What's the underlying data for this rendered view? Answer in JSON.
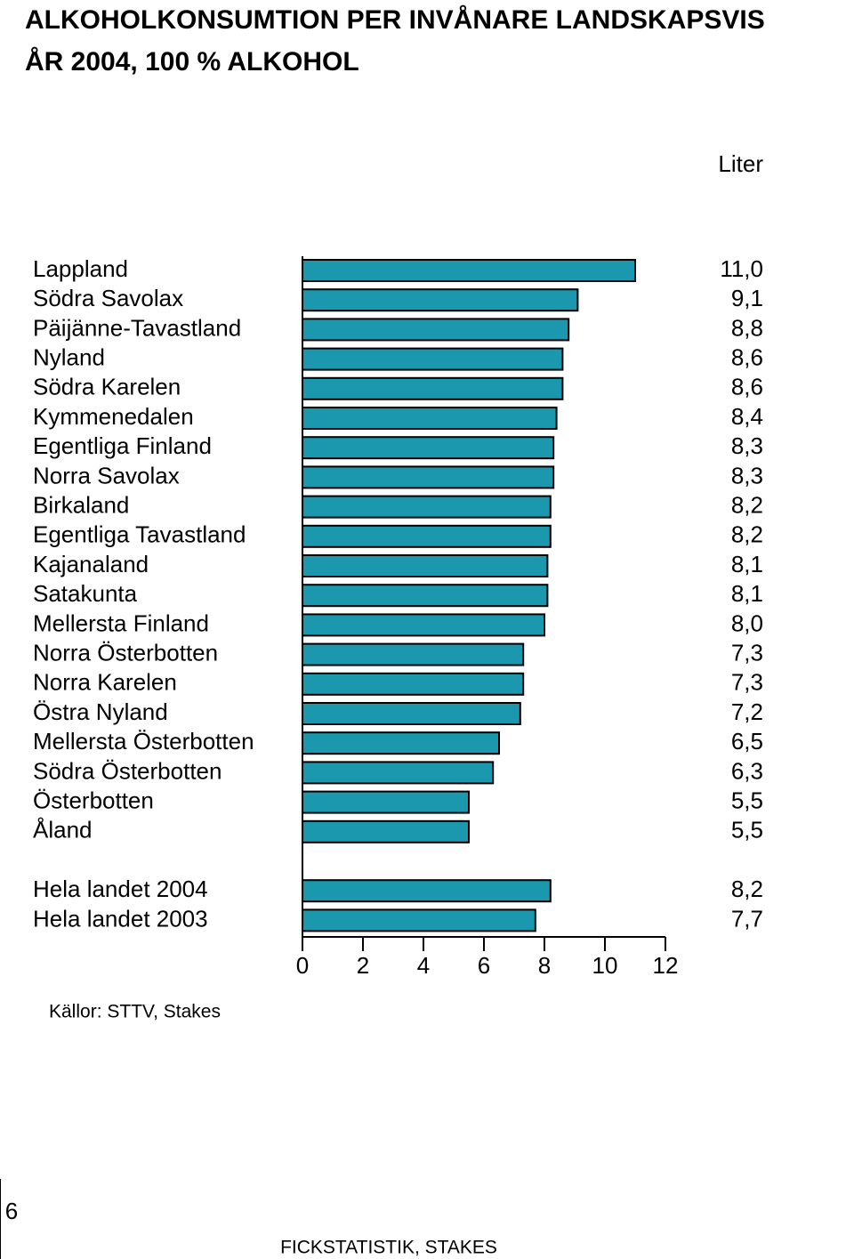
{
  "chart_data": {
    "type": "bar",
    "orientation": "horizontal",
    "title": [
      "ALKOHOLKONSUMTION PER INVÅNARE LANDSKAPSVIS",
      "ÅR 2004, 100 % ALKOHOL"
    ],
    "unit_label": "Liter",
    "source": "Källor: STTV, Stakes",
    "categories": [
      "Lappland",
      "Södra Savolax",
      "Päijänne-Tavastland",
      "Nyland",
      "Södra Karelen",
      "Kymmenedalen",
      "Egentliga Finland",
      "Norra Savolax",
      "Birkaland",
      "Egentliga Tavastland",
      "Kajanaland",
      "Satakunta",
      "Mellersta Finland",
      "Norra Österbotten",
      "Norra Karelen",
      "Östra Nyland",
      "Mellersta Österbotten",
      "Södra Österbotten",
      "Österbotten",
      "Åland",
      null,
      "Hela landet 2004",
      "Hela landet 2003"
    ],
    "values": [
      11.0,
      9.1,
      8.8,
      8.6,
      8.6,
      8.4,
      8.3,
      8.3,
      8.2,
      8.2,
      8.1,
      8.1,
      8.0,
      7.3,
      7.3,
      7.2,
      6.5,
      6.3,
      5.5,
      5.5,
      null,
      8.2,
      7.7
    ],
    "value_labels": [
      "11,0",
      "9,1",
      "8,8",
      "8,6",
      "8,6",
      "8,4",
      "8,3",
      "8,3",
      "8,2",
      "8,2",
      "8,1",
      "8,1",
      "8,0",
      "7,3",
      "7,3",
      "7,2",
      "6,5",
      "6,3",
      "5,5",
      "5,5",
      null,
      "8,2",
      "7,7"
    ],
    "color": "#1b98ad",
    "xlim": [
      0,
      12
    ],
    "xticks": [
      0,
      2,
      4,
      6,
      8,
      10,
      12
    ],
    "grid": false
  },
  "page_number": "6",
  "footer": "FICKSTATISTIK, STAKES"
}
